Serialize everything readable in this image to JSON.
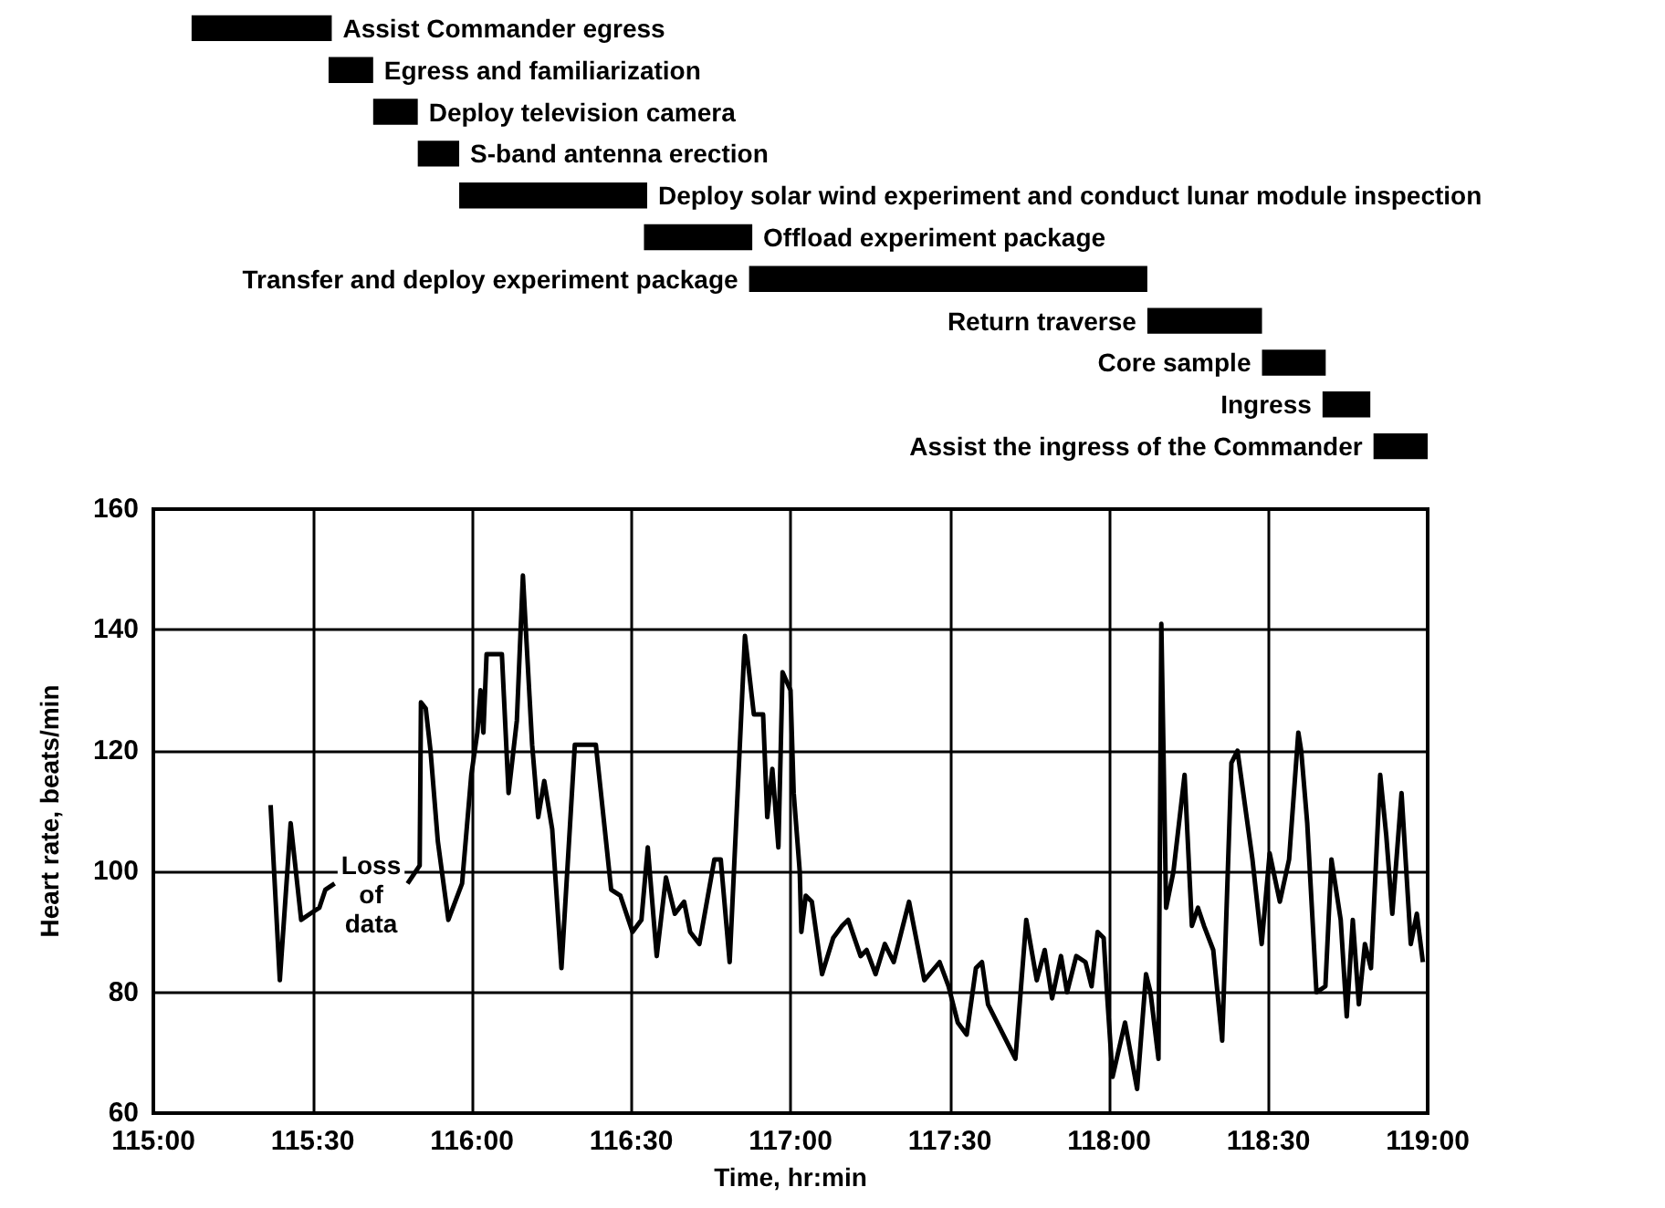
{
  "chart_data": [
    {
      "type": "bar",
      "orientation": "horizontal",
      "color": "#000000",
      "xlim": [
        115,
        119
      ],
      "tick_labels": false,
      "categories": [
        "Assist Commander egress",
        "Egress and familiarization",
        "Deploy television camera",
        "S-band antenna erection",
        "Deploy solar wind experiment and conduct lunar module inspection",
        "Offload experiment package",
        "Transfer and deploy experiment package",
        "Return traverse",
        "Core sample",
        "Ingress",
        "Assist the ingress of the Commander"
      ],
      "base": [
        115.12,
        115.55,
        115.69,
        115.83,
        115.96,
        116.54,
        116.87,
        118.12,
        118.48,
        118.67,
        118.83
      ],
      "values": [
        0.44,
        0.14,
        0.14,
        0.13,
        0.59,
        0.34,
        1.25,
        0.36,
        0.2,
        0.15,
        0.17
      ]
    },
    {
      "type": "line",
      "color": "#000000",
      "xlabel": "Time, hr:min",
      "ylabel": "Heart rate, beats/min",
      "grid": true,
      "xlim": [
        115,
        119
      ],
      "ylim": [
        60,
        160
      ],
      "xticks": [
        {
          "value": 115,
          "label": "115:00"
        },
        {
          "value": 115.5,
          "label": "115:30"
        },
        {
          "value": 116,
          "label": "116:00"
        },
        {
          "value": 116.5,
          "label": "116:30"
        },
        {
          "value": 117,
          "label": "117:00"
        },
        {
          "value": 117.5,
          "label": "117:30"
        },
        {
          "value": 118,
          "label": "118:00"
        },
        {
          "value": 118.5,
          "label": "118:30"
        },
        {
          "value": 119,
          "label": "119:00"
        }
      ],
      "yticks": [
        60,
        80,
        100,
        120,
        140,
        160
      ],
      "annotations": [
        "Loss of data"
      ],
      "x": [
        115.368,
        115.397,
        115.431,
        115.464,
        115.492,
        115.521,
        115.54,
        115.569,
        115.68,
        115.798,
        115.836,
        115.84,
        115.855,
        115.87,
        115.893,
        115.926,
        115.969,
        115.998,
        116.017,
        116.027,
        116.036,
        116.046,
        116.08,
        116.094,
        116.115,
        116.141,
        116.16,
        116.189,
        116.208,
        116.227,
        116.252,
        116.281,
        116.323,
        116.389,
        116.437,
        116.466,
        116.504,
        116.532,
        116.552,
        116.58,
        116.609,
        116.637,
        116.666,
        116.685,
        116.714,
        116.761,
        116.781,
        116.809,
        116.857,
        116.885,
        116.914,
        116.927,
        116.943,
        116.962,
        116.975,
        117.0,
        117.01,
        117.029,
        117.034,
        117.048,
        117.067,
        117.099,
        117.134,
        117.162,
        117.181,
        117.22,
        117.239,
        117.267,
        117.296,
        117.324,
        117.372,
        117.42,
        117.468,
        117.496,
        117.525,
        117.553,
        117.582,
        117.601,
        117.62,
        117.706,
        117.74,
        117.773,
        117.798,
        117.821,
        117.849,
        117.868,
        117.897,
        117.926,
        117.945,
        117.964,
        117.983,
        117.992,
        118.011,
        118.05,
        118.088,
        118.116,
        118.13,
        118.155,
        118.164,
        118.179,
        118.202,
        118.237,
        118.26,
        118.279,
        118.298,
        118.327,
        118.355,
        118.384,
        118.403,
        118.45,
        118.479,
        118.504,
        118.536,
        118.565,
        118.594,
        118.603,
        118.622,
        118.651,
        118.679,
        118.698,
        118.727,
        118.746,
        118.765,
        118.784,
        118.803,
        118.822,
        118.851,
        118.87,
        118.889,
        118.918,
        118.947,
        118.966,
        118.985
      ],
      "values": [
        111,
        82,
        108,
        92,
        93,
        94,
        97,
        98,
        null,
        98,
        101,
        128,
        127,
        120,
        105,
        92,
        98,
        116,
        123,
        130,
        123,
        136,
        136,
        136,
        113,
        125,
        149,
        121,
        109,
        115,
        107,
        84,
        121,
        121,
        97,
        96,
        90,
        92,
        104,
        86,
        99,
        93,
        95,
        90,
        88,
        102,
        102,
        85,
        139,
        126,
        126,
        109,
        117,
        104,
        133,
        130,
        113,
        100,
        90,
        96,
        95,
        83,
        89,
        91,
        92,
        86,
        87,
        83,
        88,
        85,
        95,
        82,
        85,
        81,
        75,
        73,
        84,
        85,
        78,
        69,
        92,
        82,
        87,
        79,
        86,
        80,
        86,
        85,
        81,
        90,
        89,
        81,
        66,
        75,
        64,
        83,
        80,
        69,
        141,
        94,
        100,
        116,
        91,
        94,
        91,
        87,
        72,
        118,
        120,
        102,
        88,
        103,
        95,
        102,
        123,
        120,
        108,
        80,
        81,
        102,
        92,
        76,
        92,
        78,
        88,
        84,
        116,
        106,
        93,
        113,
        88,
        93,
        85
      ]
    }
  ]
}
